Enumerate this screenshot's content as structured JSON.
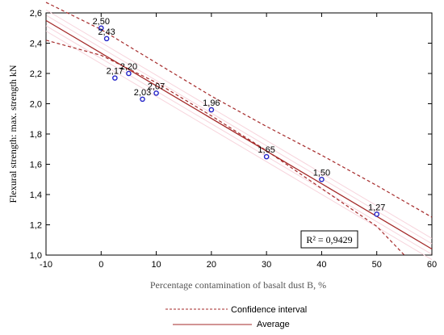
{
  "chart_data": {
    "type": "scatter",
    "title": "",
    "xlabel": "Percentage contamination of basalt dust B, %",
    "ylabel": "Flexural strength: max. strength kN",
    "xlim": [
      -10,
      60
    ],
    "ylim": [
      1.0,
      2.6
    ],
    "x_ticks": [
      "-10",
      "0",
      "10",
      "20",
      "30",
      "40",
      "50",
      "60"
    ],
    "y_ticks": [
      "1,0",
      "1,2",
      "1,4",
      "1,6",
      "1,8",
      "2,0",
      "2,2",
      "2,4",
      "2,6"
    ],
    "grid": false,
    "points": [
      {
        "x": 0,
        "y": 2.5,
        "label": "2,50"
      },
      {
        "x": 1,
        "y": 2.43,
        "label": "2,43"
      },
      {
        "x": 2.5,
        "y": 2.17,
        "label": "2,17"
      },
      {
        "x": 5,
        "y": 2.2,
        "label": "2,20"
      },
      {
        "x": 7.5,
        "y": 2.03,
        "label": "2,03"
      },
      {
        "x": 10,
        "y": 2.07,
        "label": "2,07"
      },
      {
        "x": 20,
        "y": 1.96,
        "label": "1,96"
      },
      {
        "x": 30,
        "y": 1.65,
        "label": "1,65"
      },
      {
        "x": 40,
        "y": 1.5,
        "label": "1,50"
      },
      {
        "x": 50,
        "y": 1.27,
        "label": "1,27"
      }
    ],
    "fit_line": {
      "x": [
        -10,
        60
      ],
      "y": [
        2.55,
        1.04
      ]
    },
    "confidence_upper": {
      "x": [
        -10,
        0,
        10,
        20,
        30,
        40,
        50,
        60
      ],
      "y": [
        2.67,
        2.49,
        2.27,
        2.05,
        1.85,
        1.66,
        1.46,
        1.25
      ]
    },
    "confidence_lower": {
      "x": [
        -10,
        0,
        10,
        20,
        30,
        40,
        50,
        55
      ],
      "y": [
        2.42,
        2.32,
        2.14,
        1.92,
        1.69,
        1.44,
        1.19,
        1.0
      ]
    },
    "annotation": "R² = 0,9429",
    "legend": [
      {
        "label": "Confidence interval",
        "style": "dashed"
      },
      {
        "label": "Average",
        "style": "solid"
      }
    ],
    "colors": {
      "line": "#a52a2a",
      "points": "#2323c8",
      "band": "#f7d4dc"
    }
  }
}
